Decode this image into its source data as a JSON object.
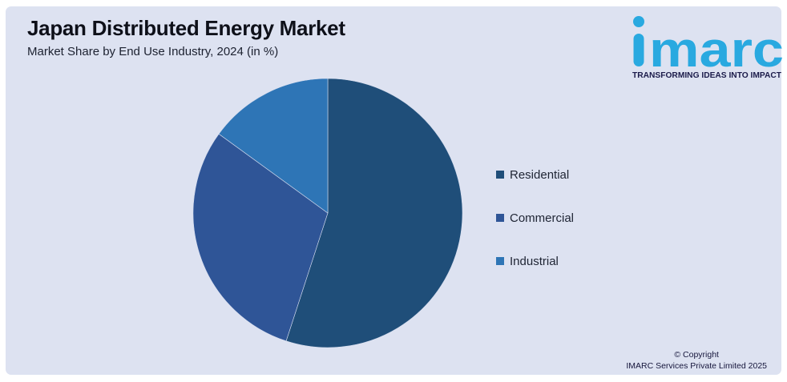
{
  "header": {
    "title": "Japan Distributed Energy Market",
    "subtitle": "Market Share by End Use Industry, 2024 (in %)"
  },
  "branding": {
    "logo_text": "imarc",
    "logo_tagline": "TRANSFORMING IDEAS INTO IMPACT",
    "logo_color": "#29A9E0",
    "tagline_color": "#1B1B4A"
  },
  "footer": {
    "copyright_line1": "© Copyright",
    "copyright_line2": "IMARC Services Private Limited 2025"
  },
  "chart_data": {
    "type": "pie",
    "title": "Japan Distributed Energy Market",
    "subtitle": "Market Share by End Use Industry, 2024 (in %)",
    "categories": [
      "Residential",
      "Commercial",
      "Industrial"
    ],
    "values": [
      55,
      30,
      15
    ],
    "unit": "%",
    "colors": [
      "#1F4E79",
      "#2F5597",
      "#2E75B6"
    ],
    "start_angle_deg": 0,
    "direction": "clockwise",
    "legend_position": "right",
    "slice_labels_shown": false
  },
  "theme": {
    "panel_bg": "#DDE2F1",
    "frame_bg": "#FFFFFF",
    "slice_divider": "#D5DCEE"
  }
}
